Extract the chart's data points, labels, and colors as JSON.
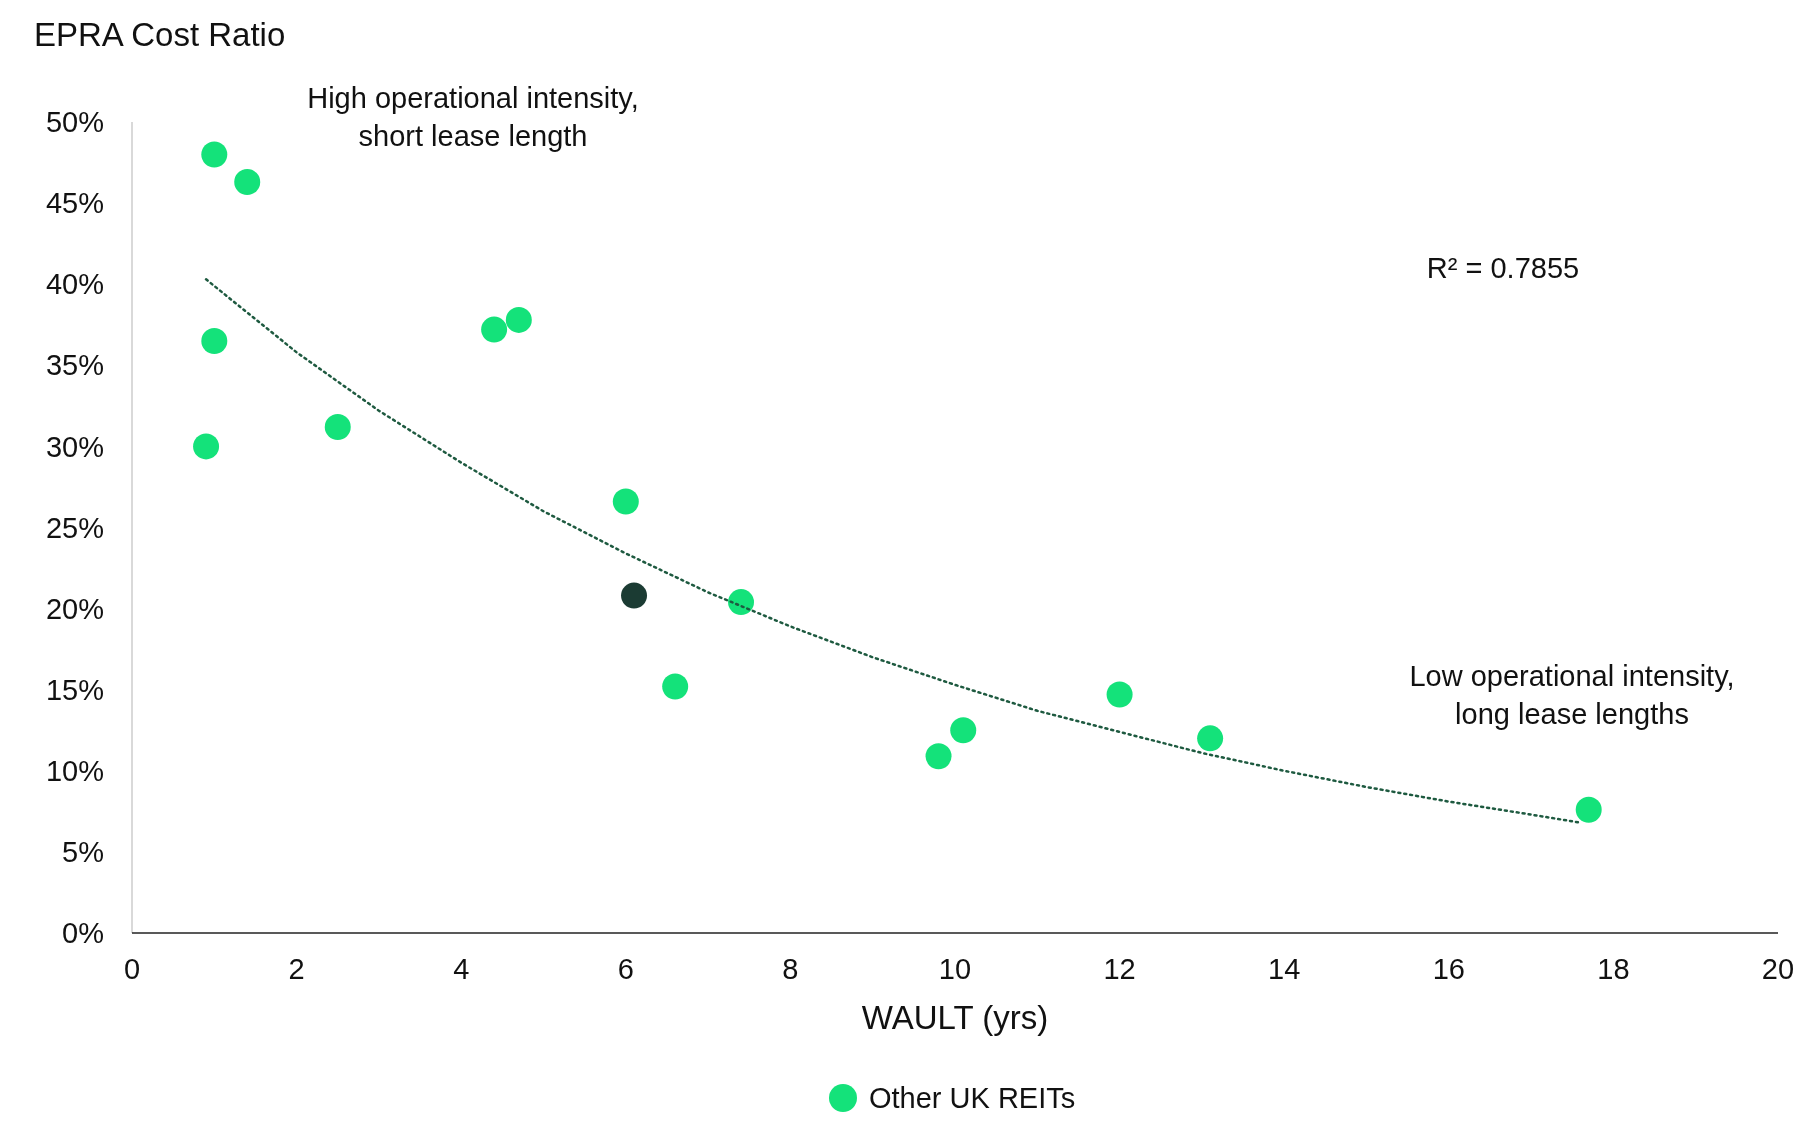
{
  "chart_data": {
    "type": "scatter",
    "title": "EPRA Cost Ratio",
    "xlabel": "WAULT (yrs)",
    "xlim": [
      0,
      20
    ],
    "xticks": [
      0,
      2,
      4,
      6,
      8,
      10,
      12,
      14,
      16,
      18,
      20
    ],
    "ylim": [
      0,
      50
    ],
    "yticks": [
      {
        "value": 0,
        "label": "0%"
      },
      {
        "value": 5,
        "label": "5%"
      },
      {
        "value": 10,
        "label": "10%"
      },
      {
        "value": 15,
        "label": "15%"
      },
      {
        "value": 20,
        "label": "20%"
      },
      {
        "value": 25,
        "label": "25%"
      },
      {
        "value": 30,
        "label": "30%"
      },
      {
        "value": 35,
        "label": "35%"
      },
      {
        "value": 40,
        "label": "40%"
      },
      {
        "value": 45,
        "label": "45%"
      },
      {
        "value": 50,
        "label": "50%"
      }
    ],
    "grid": false,
    "legend": "bottom",
    "marker": "circle",
    "series": [
      {
        "color": "#1b3b33",
        "x": [
          6.1
        ],
        "values": [
          20.8
        ]
      },
      {
        "name": "Other UK REITs",
        "color": "#14e27a",
        "x": [
          1.0,
          1.4,
          1.0,
          0.9,
          2.5,
          4.4,
          4.7,
          6.0,
          7.4,
          6.6,
          9.8,
          10.1,
          12.0,
          13.1,
          17.7
        ],
        "values": [
          48.0,
          46.3,
          36.5,
          30.0,
          31.2,
          37.2,
          37.8,
          26.6,
          20.4,
          15.2,
          10.9,
          12.5,
          14.7,
          12.0,
          7.6
        ]
      },
      {
        "type": "line",
        "marker": "none",
        "line_style": "dotted",
        "color": "#1e5a40",
        "x": [
          0.9,
          2,
          3,
          4,
          5,
          6,
          7,
          8,
          9,
          10,
          11,
          12,
          13,
          14,
          15,
          16,
          17,
          17.6
        ],
        "values": [
          40.3,
          35.8,
          32.2,
          29.0,
          26.0,
          23.4,
          21.0,
          18.9,
          17.0,
          15.3,
          13.7,
          12.4,
          11.1,
          10.0,
          9.0,
          8.1,
          7.3,
          6.8
        ]
      }
    ],
    "annotations": [
      "High operational intensity,\nshort lease length",
      "R² = 0.7855",
      "Low operational intensity,\nlong lease lengths"
    ]
  }
}
